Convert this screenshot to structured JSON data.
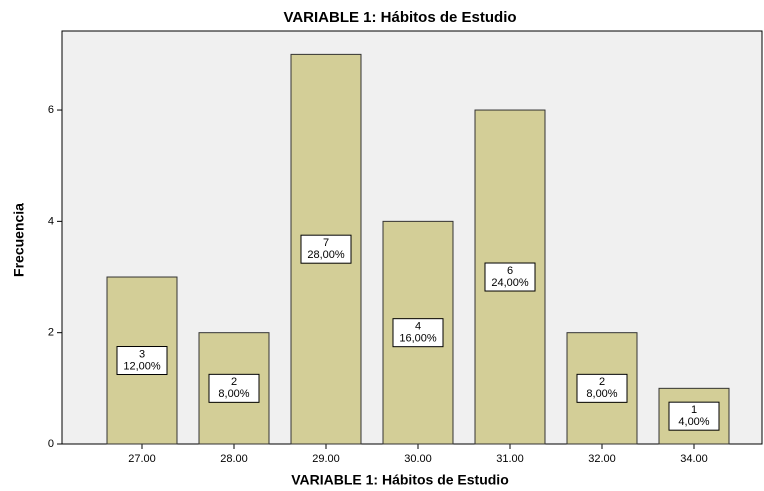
{
  "chart_data": {
    "type": "bar",
    "title": "VARIABLE 1: Hábitos de Estudio",
    "x_label": "VARIABLE 1: Hábitos de Estudio",
    "y_label": "Frecuencia",
    "categories": [
      "27.00",
      "28.00",
      "29.00",
      "30.00",
      "31.00",
      "32.00",
      "34.00"
    ],
    "values": [
      3,
      2,
      7,
      4,
      6,
      2,
      1
    ],
    "percent_labels": [
      "12,00%",
      "8,00%",
      "28,00%",
      "16,00%",
      "24,00%",
      "8,00%",
      "4,00%"
    ],
    "color": "#d3ce97",
    "ylim": [
      0,
      7.42
    ],
    "yticks": [
      0,
      2,
      4,
      6
    ],
    "grid": false
  }
}
